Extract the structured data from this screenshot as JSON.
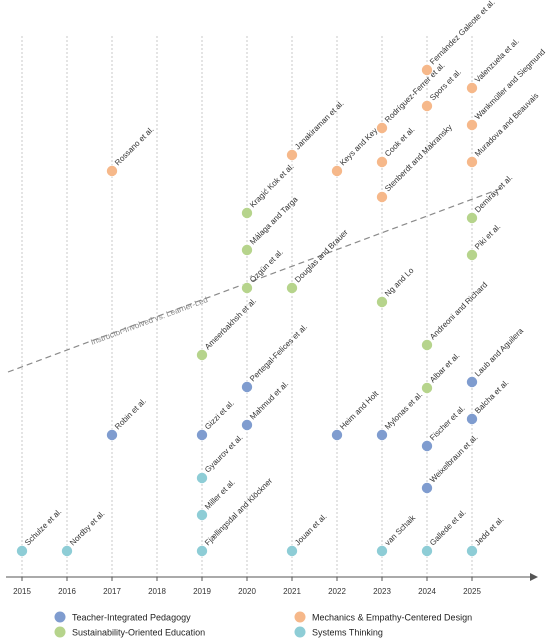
{
  "chart_data": {
    "type": "scatter",
    "x_ticks": [
      "2015",
      "2016",
      "2017",
      "2018",
      "2019",
      "2020",
      "2021",
      "2022",
      "2023",
      "2024",
      "2025"
    ],
    "grid": "vertical dashed",
    "legend_position": "bottom",
    "trend_label": "Instructor-Involved vs. Learner-Led",
    "colors": {
      "teacher": "#7f9ccf",
      "sustain": "#b6d48c",
      "mechanics": "#f6b88a",
      "systems": "#8ecdd6"
    },
    "series": [
      {
        "key": "teacher",
        "name": "Teacher-Integrated Pedagogy",
        "points": [
          {
            "year": 2017,
            "label": "Robin et al."
          },
          {
            "year": 2019,
            "label": "Gizzi et al."
          },
          {
            "year": 2020,
            "label": "Pertegal-Felices et al."
          },
          {
            "year": 2020,
            "label": "Mahmud et al."
          },
          {
            "year": 2022,
            "label": "Heim and Holt"
          },
          {
            "year": 2023,
            "label": "Mylonas et al."
          },
          {
            "year": 2024,
            "label": "Fischer et al."
          },
          {
            "year": 2024,
            "label": "Weixelbraun et al."
          },
          {
            "year": 2025,
            "label": "Laub and Aguilera"
          },
          {
            "year": 2025,
            "label": "Balcha et al."
          }
        ]
      },
      {
        "key": "sustain",
        "name": "Sustainability-Oriented Education",
        "points": [
          {
            "year": 2019,
            "label": "Ameerbakhsh et al."
          },
          {
            "year": 2020,
            "label": "Kragić Kok et al."
          },
          {
            "year": 2020,
            "label": "Málaga and Targa"
          },
          {
            "year": 2020,
            "label": "Özgün et al."
          },
          {
            "year": 2021,
            "label": "Douglas and Brauer"
          },
          {
            "year": 2023,
            "label": "Ng and Lo"
          },
          {
            "year": 2024,
            "label": "Andreoni and Richard"
          },
          {
            "year": 2024,
            "label": "Albar et al."
          },
          {
            "year": 2025,
            "label": "Demiray et al."
          },
          {
            "year": 2025,
            "label": "Piki et al."
          }
        ]
      },
      {
        "key": "mechanics",
        "name": "Mechanics & Empathy-Centered Design",
        "points": [
          {
            "year": 2017,
            "label": "Rossano et al."
          },
          {
            "year": 2021,
            "label": "Janakiraman et al."
          },
          {
            "year": 2022,
            "label": "Keys and Key"
          },
          {
            "year": 2023,
            "label": "Rodríguez-Ferrer et al."
          },
          {
            "year": 2023,
            "label": "Cook et al."
          },
          {
            "year": 2023,
            "label": "Stenberdt and Makransky"
          },
          {
            "year": 2024,
            "label": "Fernández Galeote et al."
          },
          {
            "year": 2024,
            "label": "Spors et al."
          },
          {
            "year": 2025,
            "label": "Valenzuela et al."
          },
          {
            "year": 2025,
            "label": "Wankmüller and Siegmund"
          },
          {
            "year": 2025,
            "label": "Muradova and Beauvais"
          }
        ]
      },
      {
        "key": "systems",
        "name": "Systems Thinking",
        "points": [
          {
            "year": 2015,
            "label": "Schulze et al."
          },
          {
            "year": 2016,
            "label": "Nordby et al."
          },
          {
            "year": 2019,
            "label": "Gyaurov et al."
          },
          {
            "year": 2019,
            "label": "Miller et al."
          },
          {
            "year": 2019,
            "label": "Fjællingsdal and Klöckner"
          },
          {
            "year": 2021,
            "label": "Jouan et al."
          },
          {
            "year": 2023,
            "label": "van Schaik"
          },
          {
            "year": 2024,
            "label": "Gallede et al."
          },
          {
            "year": 2025,
            "label": "Jedd et al."
          }
        ]
      }
    ]
  }
}
